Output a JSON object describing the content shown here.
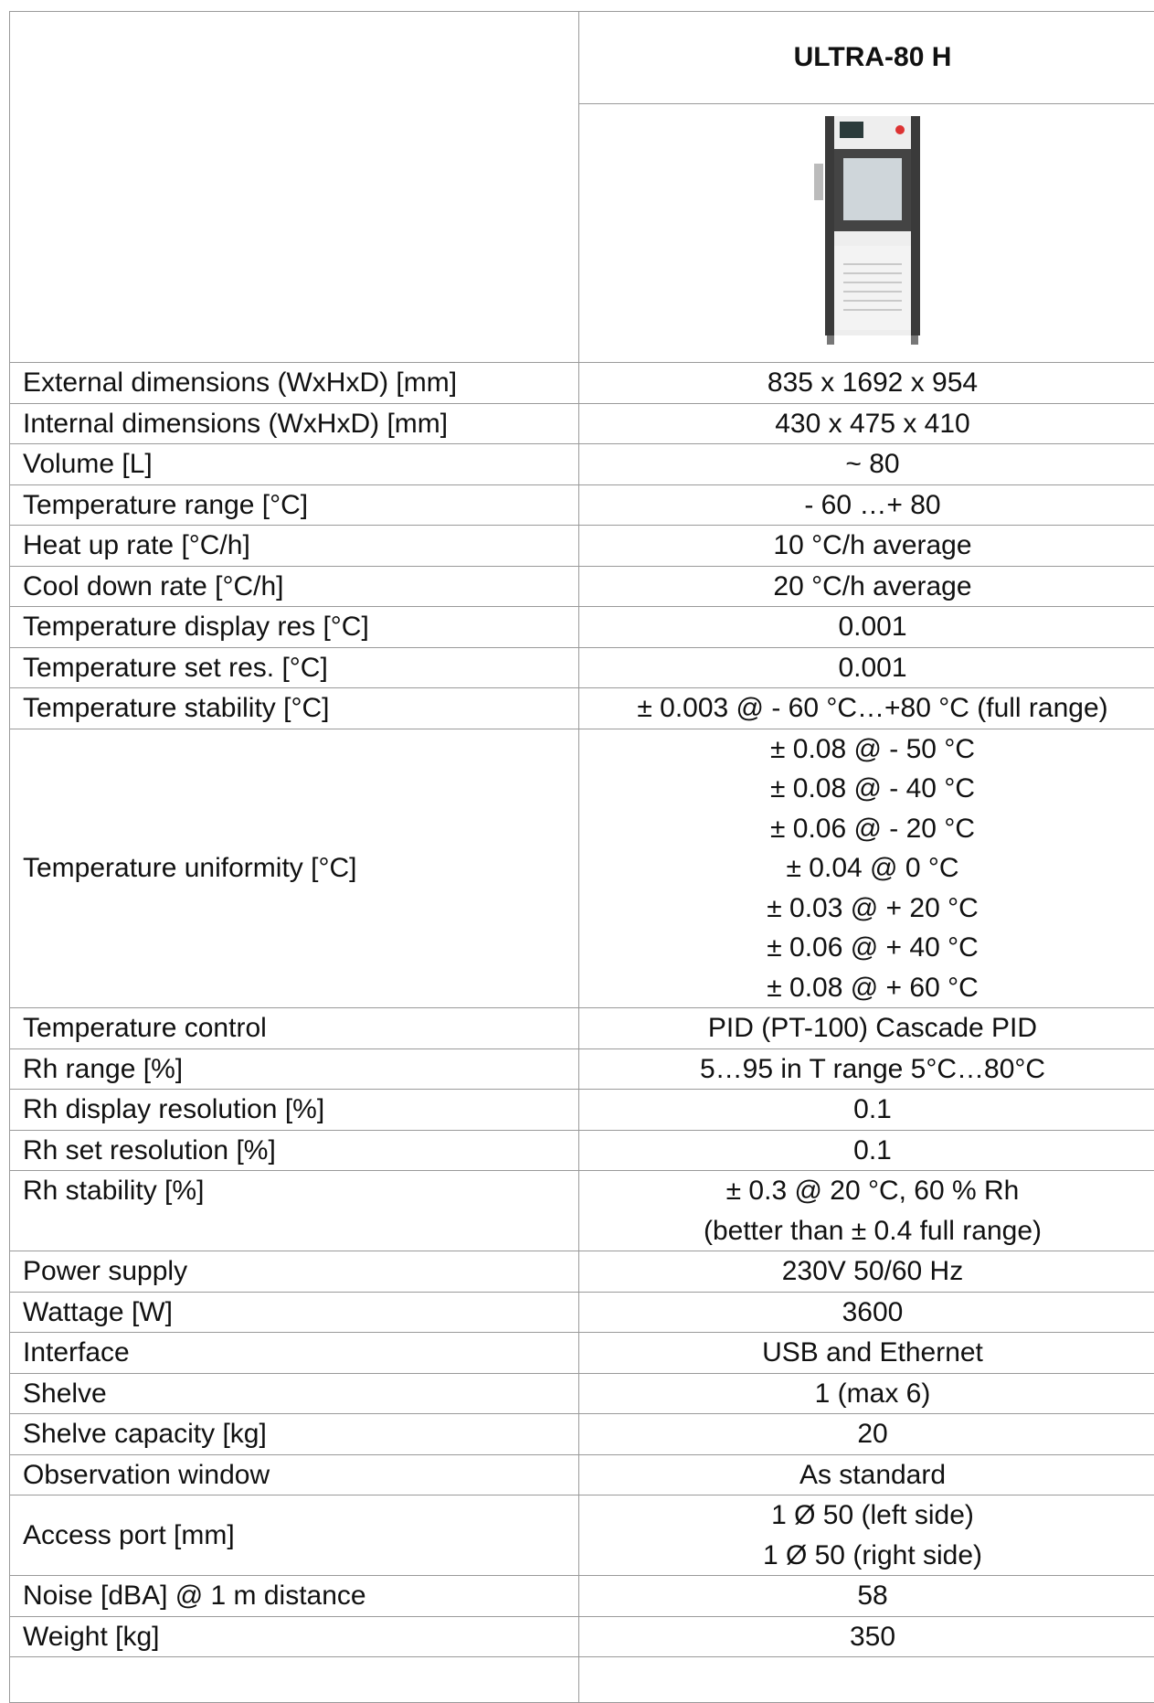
{
  "header": {
    "model": "ULTRA-80 H"
  },
  "table": {
    "rows": [
      {
        "label": "External dimensions (WxHxD) [mm]",
        "value": [
          "835 x 1692 x 954"
        ]
      },
      {
        "label": "Internal dimensions (WxHxD) [mm]",
        "value": [
          "430 x 475 x 410"
        ]
      },
      {
        "label": "Volume [L]",
        "value": [
          "~ 80"
        ]
      },
      {
        "label": "Temperature range [°C]",
        "value": [
          "- 60 …+ 80"
        ]
      },
      {
        "label": "Heat up rate [°C/h]",
        "value": [
          "10 °C/h average"
        ]
      },
      {
        "label": "Cool down rate [°C/h]",
        "value": [
          "20 °C/h average"
        ]
      },
      {
        "label": "Temperature display res [°C]",
        "value": [
          "0.001"
        ]
      },
      {
        "label": "Temperature set res. [°C]",
        "value": [
          "0.001"
        ]
      },
      {
        "label": "Temperature stability [°C]",
        "value": [
          "± 0.003 @ - 60 °C…+80 °C (full range)"
        ]
      },
      {
        "label": "Temperature uniformity [°C]",
        "value": [
          "± 0.08 @ - 50 °C",
          "± 0.08 @ - 40 °C",
          "± 0.06 @ - 20 °C",
          "± 0.04 @ 0 °C",
          "± 0.03 @ + 20 °C",
          "± 0.06 @ + 40 °C",
          "± 0.08 @ + 60 °C"
        ]
      },
      {
        "label": "Temperature control",
        "value": [
          "PID (PT-100) Cascade PID"
        ]
      },
      {
        "label": "Rh range [%]",
        "value": [
          "5…95 in T range 5°C…80°C"
        ]
      },
      {
        "label": "Rh display resolution [%]",
        "value": [
          "0.1"
        ]
      },
      {
        "label": "Rh set resolution [%]",
        "value": [
          "0.1"
        ]
      },
      {
        "label": "Rh stability [%]",
        "value": [
          "± 0.3 @ 20 °C, 60 % Rh",
          "(better than ± 0.4 full range)"
        ]
      },
      {
        "label": "Power supply",
        "value": [
          "230V 50/60 Hz"
        ]
      },
      {
        "label": "Wattage [W]",
        "value": [
          "3600"
        ]
      },
      {
        "label": "Interface",
        "value": [
          "USB and Ethernet"
        ]
      },
      {
        "label": "Shelve",
        "value": [
          "1 (max 6)"
        ]
      },
      {
        "label": "Shelve capacity [kg]",
        "value": [
          "20"
        ]
      },
      {
        "label": "Observation window",
        "value": [
          "As standard"
        ]
      },
      {
        "label": "Access port [mm]",
        "value": [
          "1 Ø 50 (left side)",
          "1 Ø 50 (right side)"
        ]
      },
      {
        "label": "Noise [dBA] @ 1 m distance",
        "value": [
          "58"
        ]
      },
      {
        "label": "Weight [kg]",
        "value": [
          "350"
        ]
      }
    ]
  }
}
